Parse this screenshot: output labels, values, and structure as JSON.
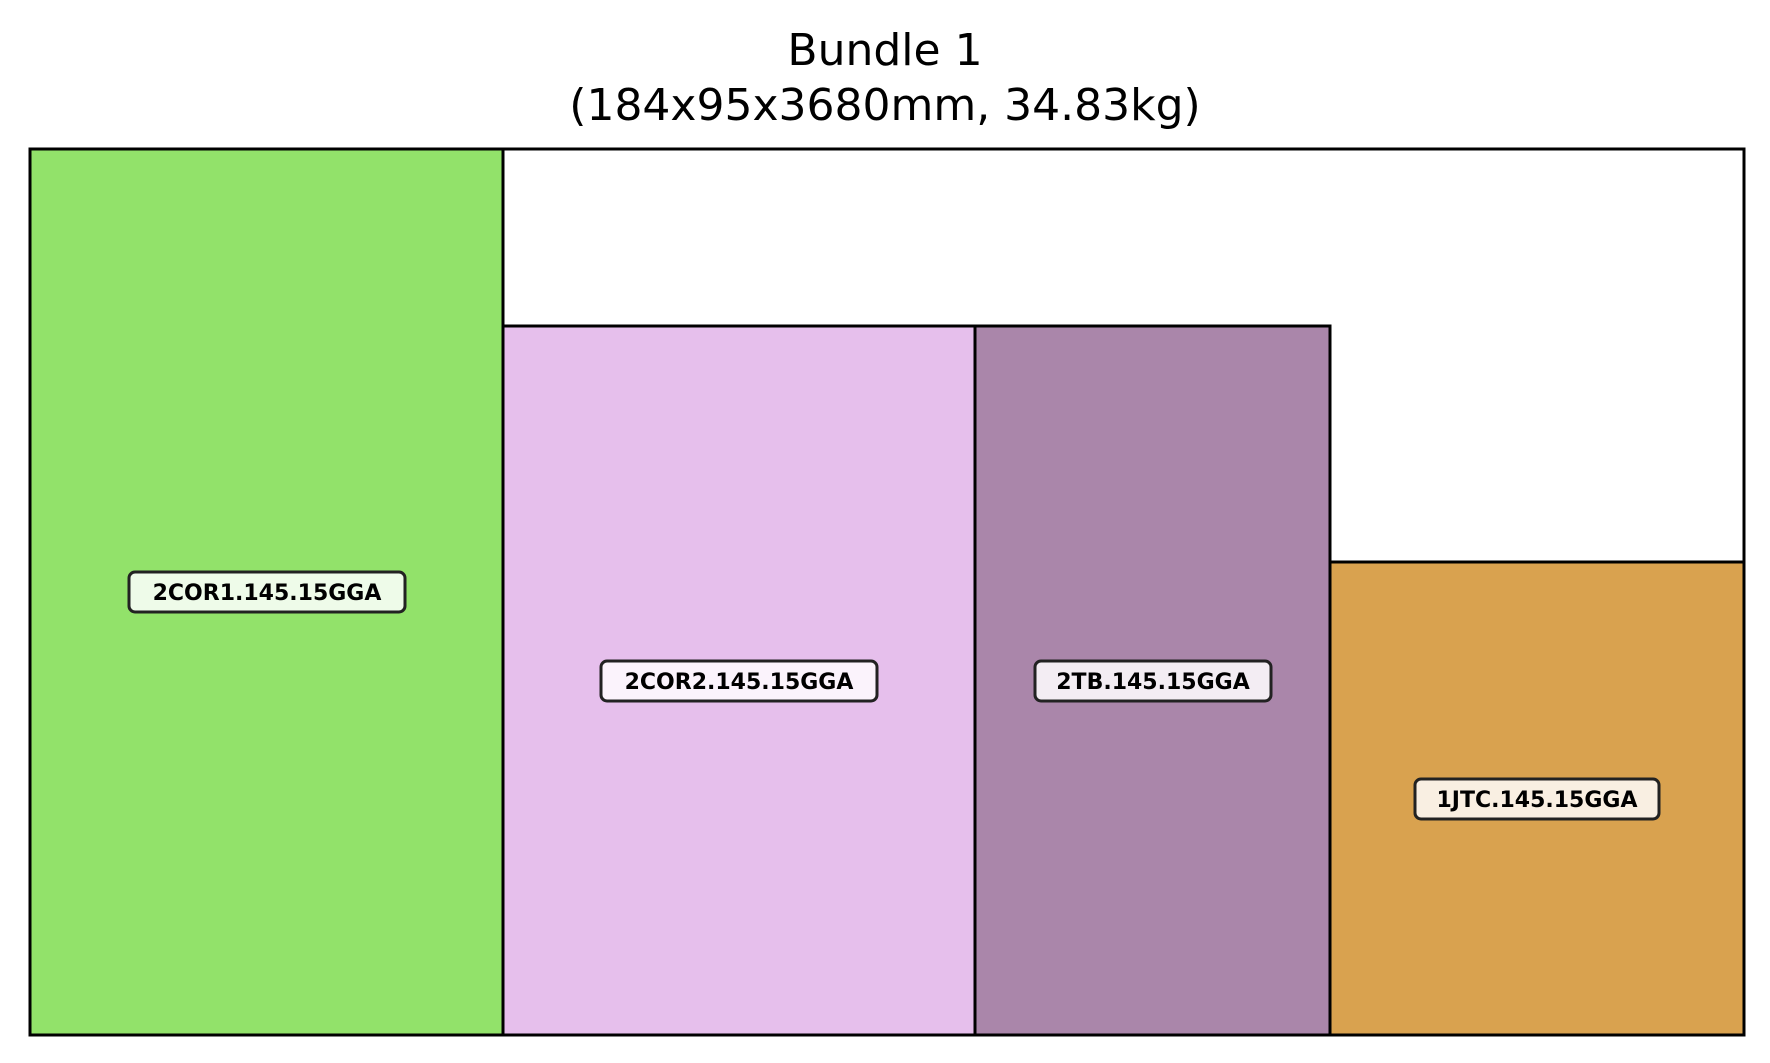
{
  "title": {
    "line1": "Bundle 1",
    "line2": "(184x95x3680mm, 34.83kg)"
  },
  "diagram": {
    "bundle": {
      "width_mm": 184,
      "height_mm": 95,
      "length_mm": 3680,
      "weight_kg": 34.83
    },
    "parts": [
      {
        "label": "2COR1.145.15GGA",
        "color": "#92e26a",
        "label_bg": "#eefbe9"
      },
      {
        "label": "2COR2.145.15GGA",
        "color": "#e6bfec",
        "label_bg": "#fbf3fc"
      },
      {
        "label": "2TB.145.15GGA",
        "color": "#aa86aa",
        "label_bg": "#f3edf3"
      },
      {
        "label": "1JTC.145.15GGA",
        "color": "#d9a24f",
        "label_bg": "#f9efe2"
      }
    ]
  }
}
